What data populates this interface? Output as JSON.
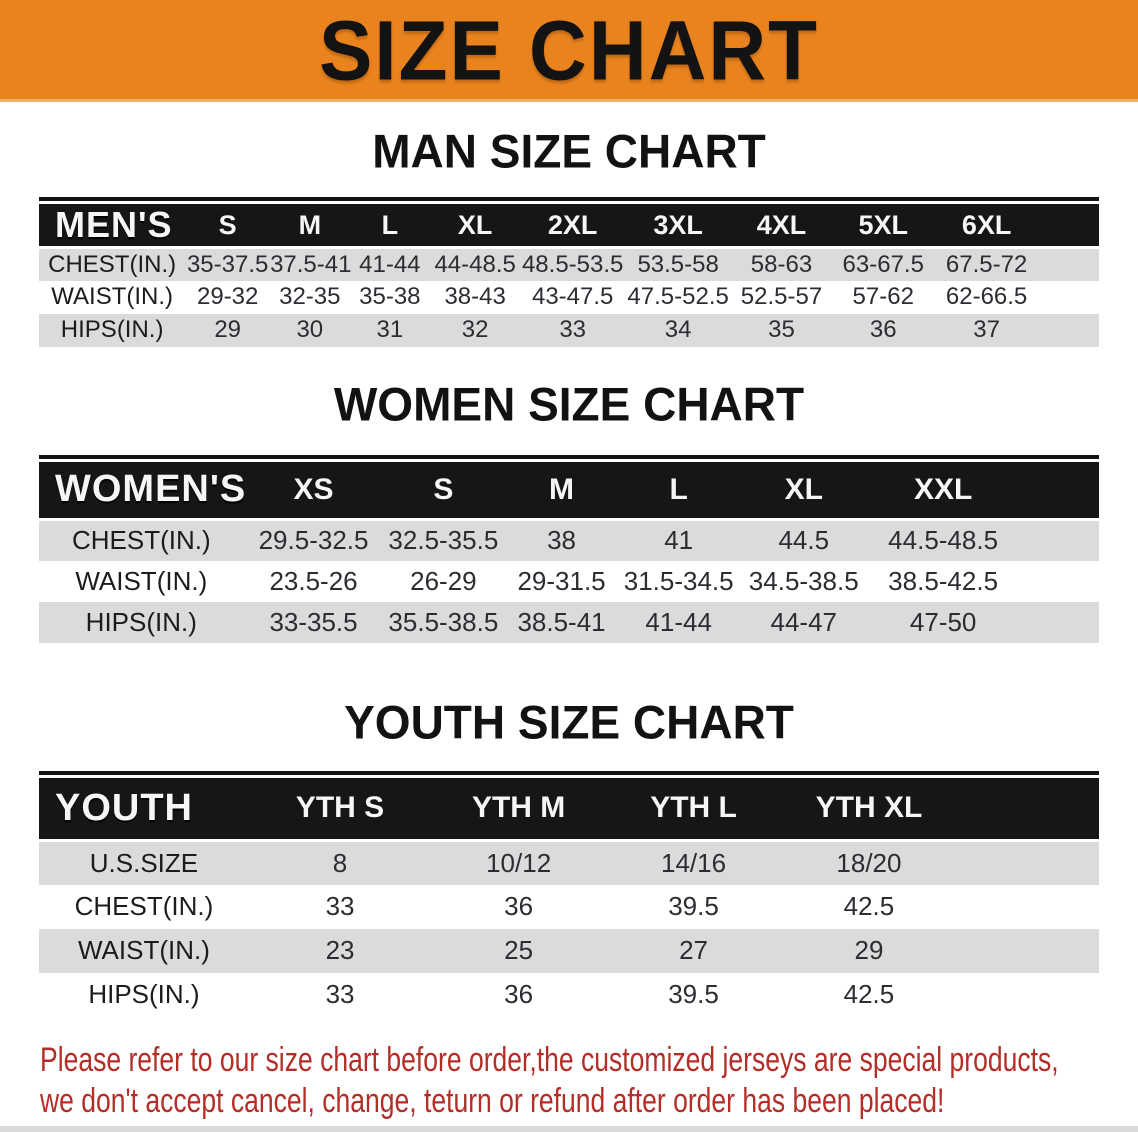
{
  "banner": {
    "title": "SIZE CHART"
  },
  "colors": {
    "banner_orange": "#E9831E",
    "header_band_black": "#161616",
    "stripe_gray": "#DBDBDB",
    "disclaimer_red": "#B42E28"
  },
  "tables": {
    "men": {
      "heading": "MAN SIZE CHART",
      "header_label": "MEN'S",
      "columns": [
        "S",
        "M",
        "L",
        "XL",
        "2XL",
        "3XL",
        "4XL",
        "5XL",
        "6XL"
      ],
      "rows": [
        {
          "label": "CHEST(IN.)",
          "values": [
            "35-37.5",
            "37.5-41",
            "41-44",
            "44-48.5",
            "48.5-53.5",
            "53.5-58",
            "58-63",
            "63-67.5",
            "67.5-72"
          ]
        },
        {
          "label": "WAIST(IN.)",
          "values": [
            "29-32",
            "32-35",
            "35-38",
            "38-43",
            "43-47.5",
            "47.5-52.5",
            "52.5-57",
            "57-62",
            "62-66.5"
          ]
        },
        {
          "label": "HIPS(IN.)",
          "values": [
            "29",
            "30",
            "31",
            "32",
            "33",
            "34",
            "35",
            "36",
            "37"
          ]
        }
      ]
    },
    "women": {
      "heading": "WOMEN SIZE CHART",
      "header_label": "WOMEN'S",
      "columns": [
        "XS",
        "S",
        "M",
        "L",
        "XL",
        "XXL"
      ],
      "rows": [
        {
          "label": "CHEST(IN.)",
          "values": [
            "29.5-32.5",
            "32.5-35.5",
            "38",
            "41",
            "44.5",
            "44.5-48.5"
          ]
        },
        {
          "label": "WAIST(IN.)",
          "values": [
            "23.5-26",
            "26-29",
            "29-31.5",
            "31.5-34.5",
            "34.5-38.5",
            "38.5-42.5"
          ]
        },
        {
          "label": "HIPS(IN.)",
          "values": [
            "33-35.5",
            "35.5-38.5",
            "38.5-41",
            "41-44",
            "44-47",
            "47-50"
          ]
        }
      ]
    },
    "youth": {
      "heading": "YOUTH SIZE CHART",
      "header_label": "YOUTH",
      "columns": [
        "YTH S",
        "YTH M",
        "YTH L",
        "YTH XL"
      ],
      "rows": [
        {
          "label": "U.S.SIZE",
          "values": [
            "8",
            "10/12",
            "14/16",
            "18/20"
          ]
        },
        {
          "label": "CHEST(IN.)",
          "values": [
            "33",
            "36",
            "39.5",
            "42.5"
          ]
        },
        {
          "label": "WAIST(IN.)",
          "values": [
            "23",
            "25",
            "27",
            "29"
          ]
        },
        {
          "label": "HIPS(IN.)",
          "values": [
            "33",
            "36",
            "39.5",
            "42.5"
          ]
        }
      ]
    }
  },
  "disclaimer": {
    "line1": "Please refer to our size chart before order,the customized jerseys are special products,",
    "line2": "we don't accept cancel, change, teturn or refund after order has been placed!"
  }
}
